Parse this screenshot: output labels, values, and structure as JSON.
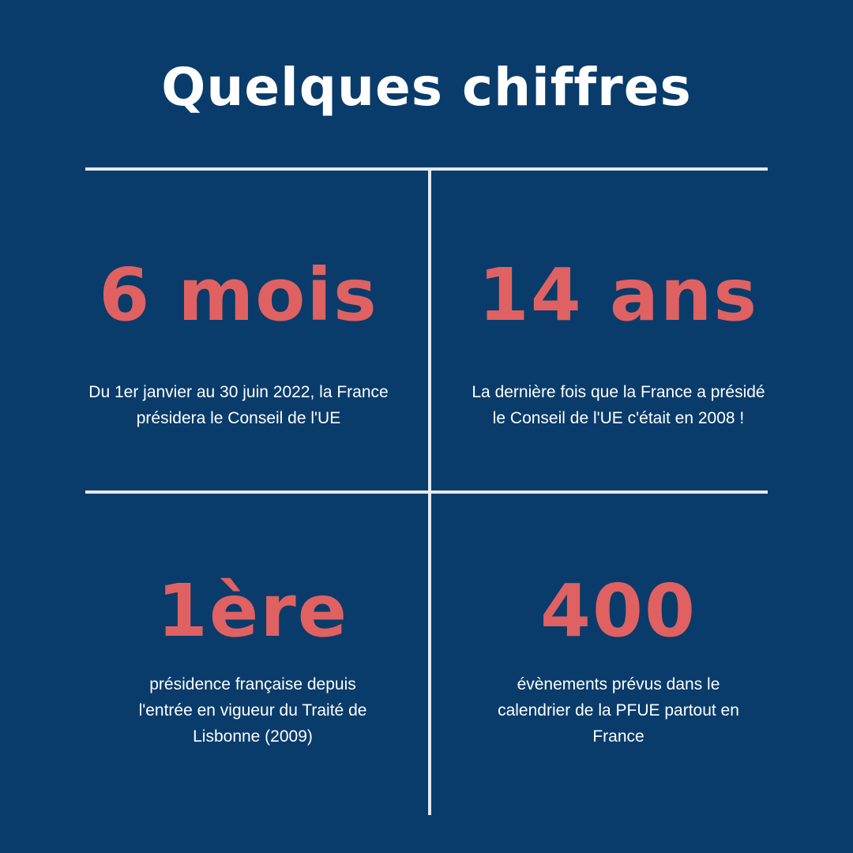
{
  "title": "Quelques chiffres",
  "colors": {
    "background": "#093c6b",
    "accent": "#e06161",
    "text": "#ffffff"
  },
  "facts": [
    {
      "value": "6 mois",
      "lines": [
        "Du 1er janvier au 30 juin 2022, la France",
        "présidera le Conseil de l'UE"
      ]
    },
    {
      "value": "14 ans",
      "lines": [
        "La dernière fois que la France a présidé",
        "le Conseil de l'UE c'était en 2008 !"
      ]
    },
    {
      "value": "1ère",
      "lines": [
        "présidence française depuis",
        "l'entrée en vigueur du Traité de",
        "Lisbonne (2009)"
      ]
    },
    {
      "value": "400",
      "lines": [
        "évènements prévus dans le",
        "calendrier de la PFUE partout en",
        "France"
      ]
    }
  ]
}
